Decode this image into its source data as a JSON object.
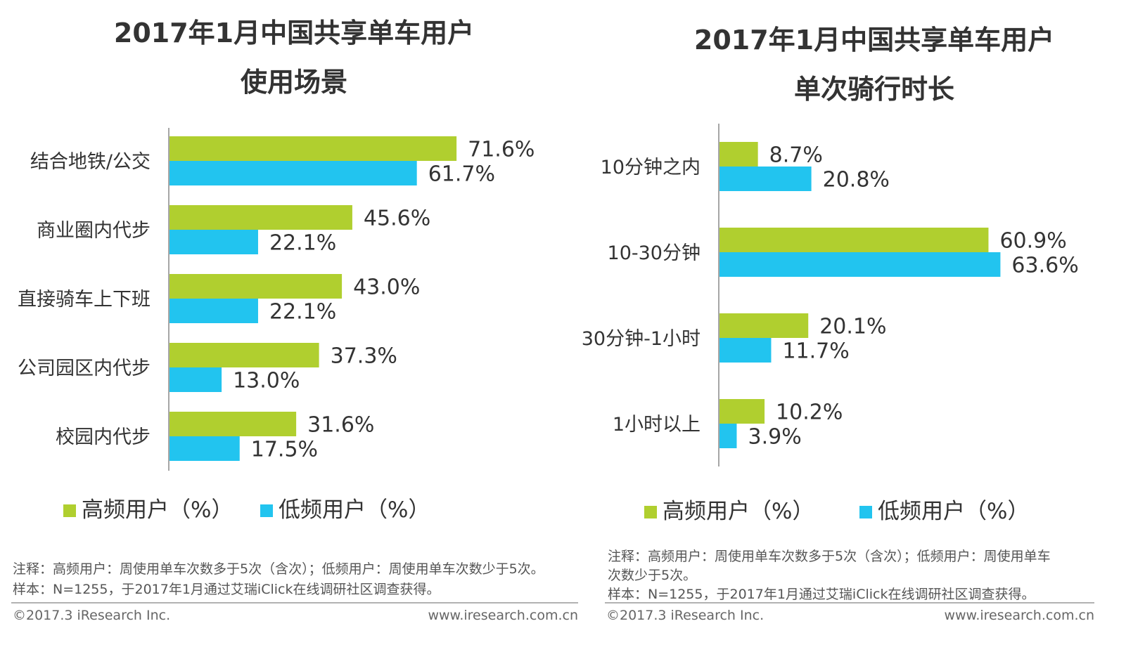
{
  "colors": {
    "high": "#b0cf2f",
    "low": "#22c4ef",
    "axis": "#888888",
    "rule": "#999999"
  },
  "chart_data": [
    {
      "type": "bar",
      "orientation": "horizontal",
      "title_lines": [
        "2017年1月中国共享单车用户",
        "使用场景"
      ],
      "categories": [
        "结合地铁/公交",
        "商业圈内代步",
        "直接骑车上下班",
        "公司园区内代步",
        "校园内代步"
      ],
      "series": [
        {
          "name": "高频用户（%）",
          "values": [
            71.6,
            45.6,
            43.0,
            37.3,
            31.6
          ],
          "labels": [
            "71.6%",
            "45.6%",
            "43.0%",
            "37.3%",
            "31.6%"
          ]
        },
        {
          "name": "低频用户（%）",
          "values": [
            61.7,
            22.1,
            22.1,
            13.0,
            17.5
          ],
          "labels": [
            "61.7%",
            "22.1%",
            "22.1%",
            "13.0%",
            "17.5%"
          ]
        }
      ],
      "xlim": [
        0,
        100
      ],
      "legend": [
        "高频用户（%）",
        "低频用户（%）"
      ],
      "legend_position": "bottom",
      "notes": [
        "注释：高频用户：周使用单车次数多于5次（含次）；低频用户：周使用单车次数少于5次。",
        "样本：N=1255，于2017年1月通过艾瑞iClick在线调研社区调查获得。"
      ],
      "footer_left": "©2017.3 iResearch Inc.",
      "footer_right": "www.iresearch.com.cn"
    },
    {
      "type": "bar",
      "orientation": "horizontal",
      "title_lines": [
        "2017年1月中国共享单车用户",
        "单次骑行时长"
      ],
      "categories": [
        "10分钟之内",
        "10-30分钟",
        "30分钟-1小时",
        "1小时以上"
      ],
      "series": [
        {
          "name": "高频用户（%）",
          "values": [
            8.7,
            60.9,
            20.1,
            10.2
          ],
          "labels": [
            "8.7%",
            "60.9%",
            "20.1%",
            "10.2%"
          ]
        },
        {
          "name": "低频用户（%）",
          "values": [
            20.8,
            63.6,
            11.7,
            3.9
          ],
          "labels": [
            "20.8%",
            "63.6%",
            "11.7%",
            "3.9%"
          ]
        }
      ],
      "xlim": [
        0,
        100
      ],
      "legend": [
        "高频用户（%）",
        "低频用户（%）"
      ],
      "legend_position": "bottom",
      "notes": [
        "注释：高频用户：周使用单车次数多于5次（含次）；低频用户：周使用单车",
        "次数少于5次。",
        "样本：N=1255，于2017年1月通过艾瑞iClick在线调研社区调查获得。"
      ],
      "footer_left": "©2017.3 iResearch Inc.",
      "footer_right": "www.iresearch.com.cn"
    }
  ]
}
